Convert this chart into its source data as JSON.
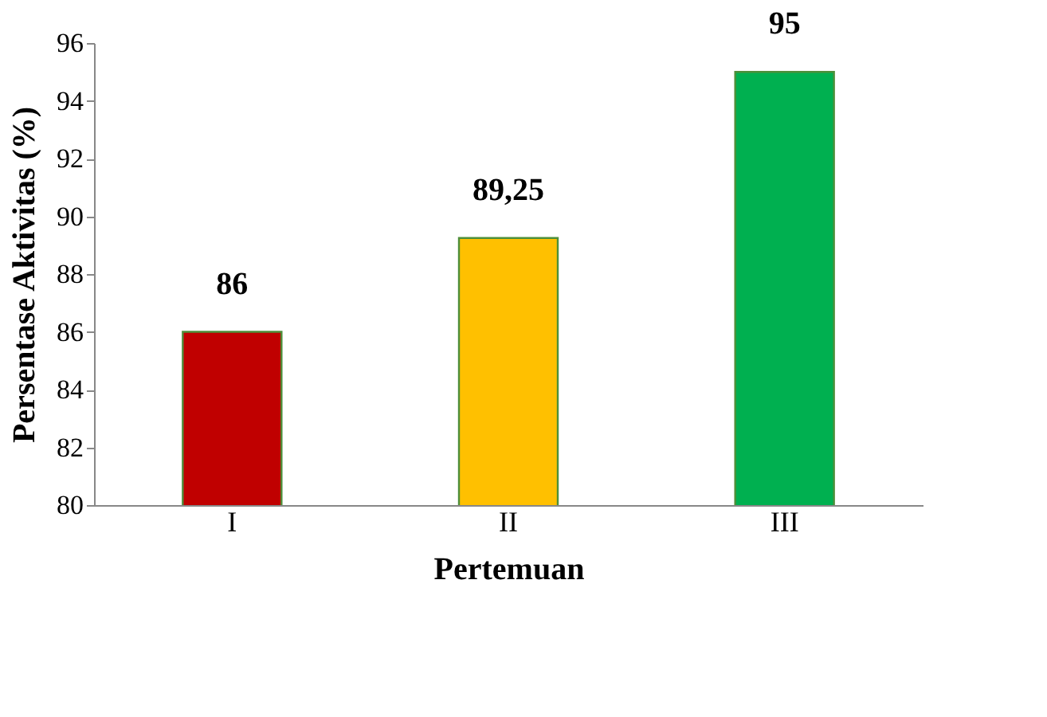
{
  "chart_data": {
    "type": "bar",
    "xlabel": "Pertemuan",
    "ylabel": "Persentase Aktivitas (%)",
    "categories": [
      "I",
      "II",
      "III"
    ],
    "values": [
      86,
      89.25,
      95
    ],
    "colors": [
      "#c00000",
      "#ffc000",
      "#00b050"
    ],
    "value_labels": [
      "86",
      "89,25",
      "95"
    ],
    "ylim": [
      80,
      96
    ],
    "yticks": [
      80,
      82,
      84,
      86,
      88,
      90,
      92,
      94,
      96
    ],
    "grid": false
  }
}
